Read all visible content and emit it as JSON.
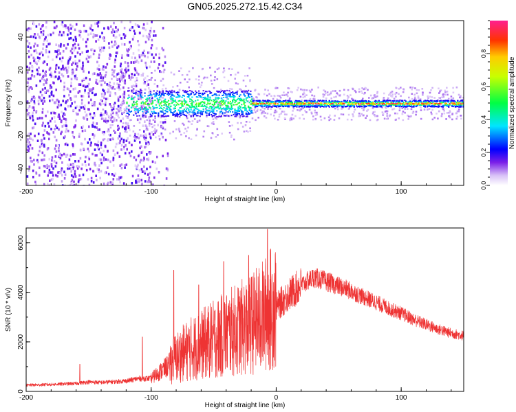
{
  "title": "GN05.2025.272.15.42.C34",
  "colors": {
    "snr_line": "#ee3333",
    "axis": "#000000",
    "background": "#ffffff"
  },
  "chart_data": [
    {
      "type": "heatmap",
      "name": "spectrogram",
      "xlabel": "Height of straight line (km)",
      "ylabel": "Frequency (Hz)",
      "xlim": [
        -200,
        150
      ],
      "ylim": [
        -50,
        50
      ],
      "xticks": [
        -200,
        -100,
        0,
        100
      ],
      "xtick_labels": [
        "-200",
        "-100",
        "0",
        "100"
      ],
      "yticks": [
        -40,
        -20,
        0,
        20,
        40
      ],
      "ytick_labels": [
        "-40",
        "-20",
        "0",
        "20",
        "40"
      ],
      "colorbar": {
        "label": "Normalized spectral amplitude",
        "range": [
          0.0,
          1.0
        ],
        "ticks": [
          0.0,
          0.2,
          0.4,
          0.6,
          0.8
        ],
        "tick_labels": [
          "0.0",
          "0.2",
          "0.4",
          "0.6",
          "0.8"
        ]
      },
      "regions": [
        {
          "x": [
            -200,
            -95
          ],
          "description": "broadband noise, low amplitude"
        },
        {
          "x": [
            -95,
            -20
          ],
          "freq_spread_hz": 8,
          "peak_amplitude": 0.5
        },
        {
          "x": [
            -20,
            150
          ],
          "freq_spread_hz": 2,
          "peak_amplitude": 0.95
        }
      ]
    },
    {
      "type": "line",
      "name": "snr",
      "xlabel": "Height of straight line (km)",
      "ylabel": "SNR (10 * v/v)",
      "xlim": [
        -200,
        150
      ],
      "ylim": [
        0,
        6600
      ],
      "xticks": [
        -200,
        -100,
        0,
        100
      ],
      "xtick_labels": [
        "-200",
        "-100",
        "0",
        "100"
      ],
      "yticks": [
        0,
        2000,
        4000,
        6000
      ],
      "ytick_labels": [
        "0",
        "2000",
        "4000",
        "6000"
      ],
      "series": [
        {
          "name": "SNR",
          "x": [
            -200,
            -180,
            -160,
            -150,
            -140,
            -120,
            -110,
            -100,
            -90,
            -80,
            -70,
            -60,
            -50,
            -40,
            -30,
            -20,
            -10,
            0,
            10,
            20,
            30,
            40,
            50,
            60,
            70,
            80,
            90,
            100,
            110,
            120,
            130,
            140,
            150
          ],
          "values": [
            250,
            280,
            320,
            380,
            360,
            420,
            520,
            520,
            900,
            1300,
            1600,
            1800,
            2000,
            2200,
            2400,
            2600,
            2900,
            3400,
            3900,
            4300,
            4600,
            4450,
            4250,
            4050,
            3800,
            3600,
            3350,
            3150,
            2900,
            2700,
            2500,
            2350,
            2250
          ],
          "peaks": [
            {
              "x": -157,
              "value": 1100
            },
            {
              "x": -107,
              "value": 2200
            },
            {
              "x": -82,
              "value": 4900
            },
            {
              "x": -62,
              "value": 4300
            },
            {
              "x": -42,
              "value": 5250
            },
            {
              "x": -22,
              "value": 5500
            },
            {
              "x": -7,
              "value": 6550
            }
          ]
        }
      ]
    }
  ]
}
